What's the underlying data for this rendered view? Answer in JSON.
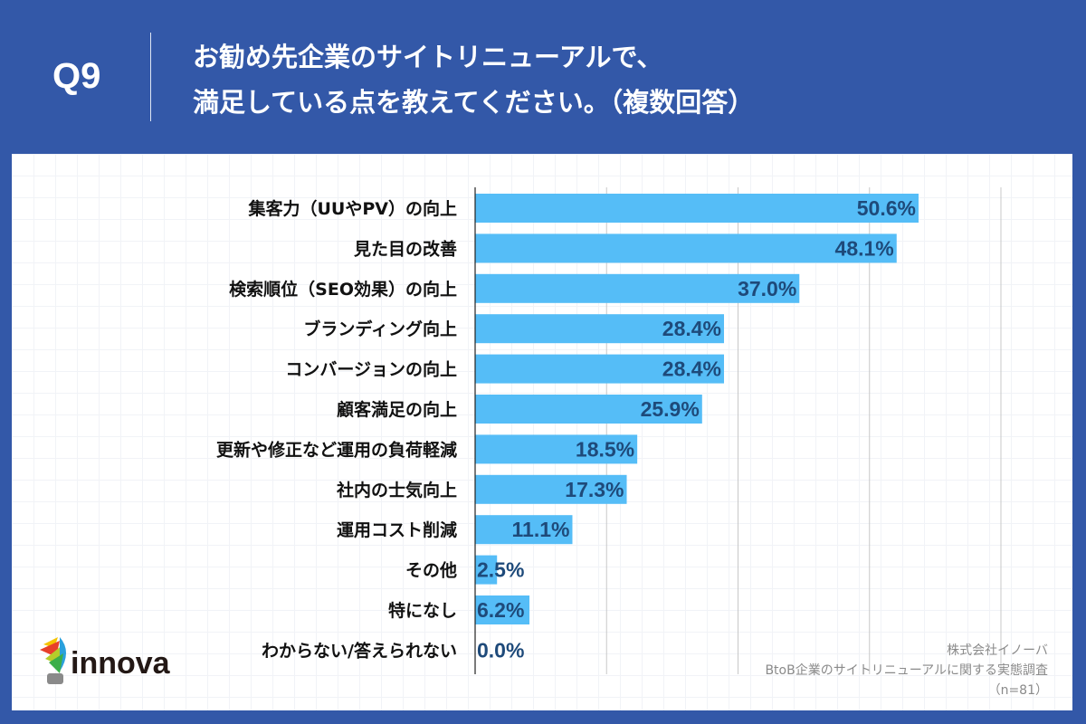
{
  "header": {
    "question_number": "Q9",
    "title": "お勧め先企業のサイトリニューアルで、\n満足している点を教えてください。（複数回答）"
  },
  "colors": {
    "background": "#3358a8",
    "bar": "#55bdf7",
    "value_label": "#1e4a7a"
  },
  "chart_data": {
    "type": "bar",
    "orientation": "horizontal",
    "categories": [
      "集客力（UUやPV）の向上",
      "見た目の改善",
      "検索順位（SEO効果）の向上",
      "ブランディング向上",
      "コンバージョンの向上",
      "顧客満足の向上",
      "更新や修正など運用の負荷軽減",
      "社内の士気向上",
      "運用コスト削減",
      "その他",
      "特になし",
      "わからない/答えられない"
    ],
    "values": [
      50.6,
      48.1,
      37.0,
      28.4,
      28.4,
      25.9,
      18.5,
      17.3,
      11.1,
      2.5,
      6.2,
      0.0
    ],
    "value_labels": [
      "50.6%",
      "48.1%",
      "37.0%",
      "28.4%",
      "28.4%",
      "25.9%",
      "18.5%",
      "17.3%",
      "11.1%",
      "2.5%",
      "6.2%",
      "0.0%"
    ],
    "xlim": [
      0,
      60
    ],
    "gridlines": [
      15,
      30,
      45,
      60
    ],
    "grid": true
  },
  "source": {
    "company": "株式会社イノーバ",
    "survey": "BtoB企業のサイトリニューアルに関する実態調査",
    "sample": "（n=81）"
  },
  "logo": {
    "text": "innova"
  }
}
